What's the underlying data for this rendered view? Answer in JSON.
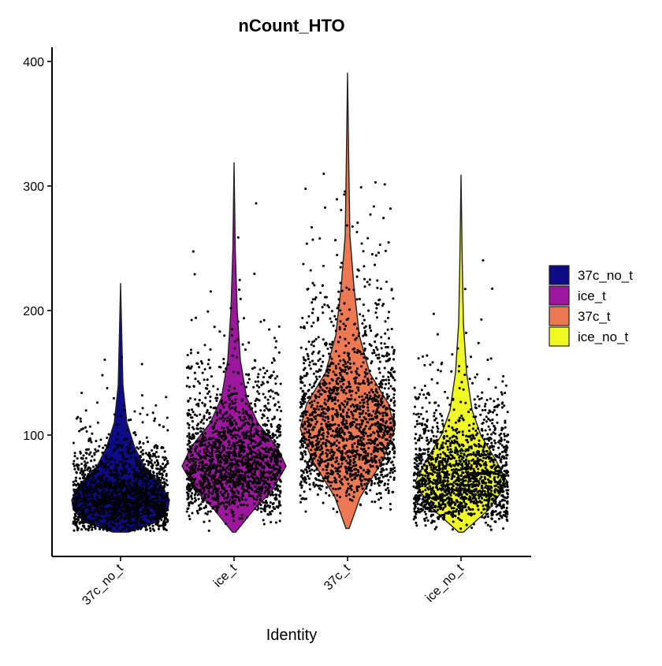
{
  "chart_data": {
    "type": "violin",
    "title": "nCount_HTO",
    "xlabel": "Identity",
    "ylabel": "",
    "ylim": [
      0,
      400
    ],
    "y_ticks": [
      100,
      200,
      300,
      400
    ],
    "categories": [
      "37c_no_t",
      "ice_t",
      "37c_t",
      "ice_no_t"
    ],
    "legend": {
      "position": "right",
      "entries": [
        {
          "label": "37c_no_t",
          "color": "#0d0b87"
        },
        {
          "label": "ice_t",
          "color": "#9c179e"
        },
        {
          "label": "37c_t",
          "color": "#ed7953"
        },
        {
          "label": "ice_no_t",
          "color": "#f0f921"
        }
      ]
    },
    "series": [
      {
        "category": "37c_no_t",
        "color": "#0d0b87",
        "min": 22,
        "max": 222,
        "mode": 48,
        "point_max": 178,
        "profile": [
          [
            22,
            10
          ],
          [
            30,
            45
          ],
          [
            40,
            60
          ],
          [
            48,
            62
          ],
          [
            60,
            52
          ],
          [
            75,
            30
          ],
          [
            90,
            18
          ],
          [
            110,
            8
          ],
          [
            140,
            3
          ],
          [
            180,
            1.5
          ],
          [
            222,
            0
          ]
        ]
      },
      {
        "category": "ice_t",
        "color": "#9c179e",
        "min": 22,
        "max": 319,
        "mode": 75,
        "point_max": 315,
        "profile": [
          [
            22,
            2
          ],
          [
            40,
            25
          ],
          [
            55,
            48
          ],
          [
            75,
            66
          ],
          [
            90,
            55
          ],
          [
            110,
            30
          ],
          [
            130,
            16
          ],
          [
            160,
            8
          ],
          [
            200,
            4
          ],
          [
            250,
            1.5
          ],
          [
            319,
            0
          ]
        ]
      },
      {
        "category": "37c_t",
        "color": "#ed7953",
        "min": 25,
        "max": 391,
        "mode": 105,
        "point_max": 395,
        "profile": [
          [
            25,
            2
          ],
          [
            50,
            16
          ],
          [
            80,
            45
          ],
          [
            105,
            60
          ],
          [
            125,
            52
          ],
          [
            150,
            28
          ],
          [
            180,
            15
          ],
          [
            220,
            8
          ],
          [
            260,
            3
          ],
          [
            320,
            1.5
          ],
          [
            391,
            0
          ]
        ]
      },
      {
        "category": "ice_no_t",
        "color": "#f0f921",
        "min": 22,
        "max": 309,
        "mode": 63,
        "point_max": 285,
        "profile": [
          [
            22,
            3
          ],
          [
            40,
            35
          ],
          [
            55,
            52
          ],
          [
            63,
            58
          ],
          [
            80,
            44
          ],
          [
            100,
            25
          ],
          [
            120,
            14
          ],
          [
            150,
            7
          ],
          [
            190,
            3
          ],
          [
            240,
            1.5
          ],
          [
            309,
            0
          ]
        ]
      }
    ]
  }
}
